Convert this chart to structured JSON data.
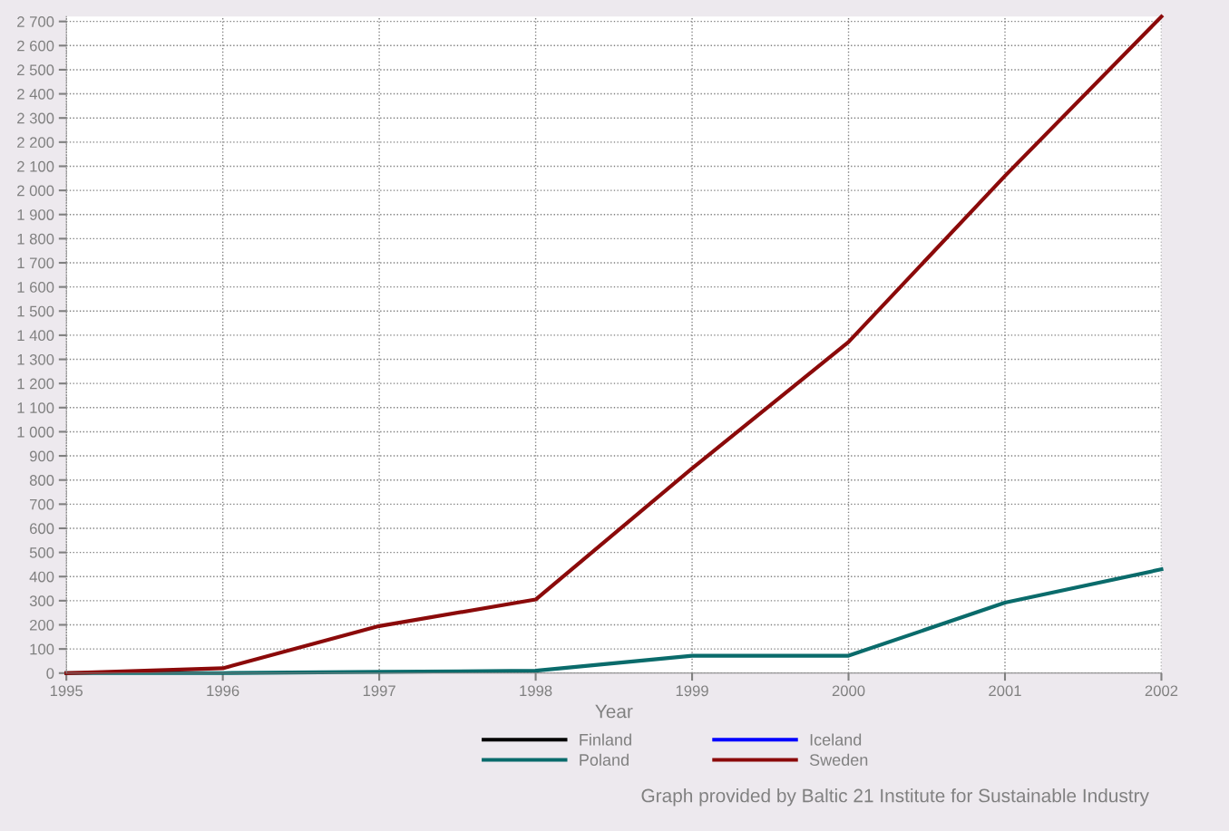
{
  "chart_data": {
    "type": "line",
    "xlabel": "Year",
    "x": [
      1995,
      1996,
      1997,
      1998,
      1999,
      2000,
      2001,
      2002
    ],
    "series": [
      {
        "name": "Finland",
        "color": "#000000",
        "values": [
          null,
          null,
          null,
          null,
          null,
          null,
          null,
          null
        ]
      },
      {
        "name": "Poland",
        "color": "#0a6b6b",
        "values": [
          0,
          0,
          5,
          10,
          72,
          72,
          292,
          430
        ]
      },
      {
        "name": "Iceland",
        "color": "#0000ff",
        "values": [
          null,
          null,
          null,
          null,
          null,
          null,
          null,
          null
        ]
      },
      {
        "name": "Sweden",
        "color": "#8b0a0a",
        "values": [
          0,
          20,
          195,
          305,
          848,
          1372,
          2060,
          2720
        ]
      }
    ],
    "xlim": [
      1995,
      2002
    ],
    "xticks": [
      1995,
      1996,
      1997,
      1998,
      1999,
      2000,
      2001,
      2002
    ],
    "ylim": [
      0,
      2720
    ],
    "yticks": [
      0,
      100,
      200,
      300,
      400,
      500,
      600,
      700,
      800,
      900,
      {
        "value": 1000,
        "label": "1 000"
      },
      {
        "value": 1100,
        "label": "1 100"
      },
      {
        "value": 1200,
        "label": "1 200"
      },
      {
        "value": 1300,
        "label": "1 300"
      },
      {
        "value": 1400,
        "label": "1 400"
      },
      {
        "value": 1500,
        "label": "1 500"
      },
      {
        "value": 1600,
        "label": "1 600"
      },
      {
        "value": 1700,
        "label": "1 700"
      },
      {
        "value": 1800,
        "label": "1 800"
      },
      {
        "value": 1900,
        "label": "1 900"
      },
      {
        "value": 2000,
        "label": "2 000"
      },
      {
        "value": 2100,
        "label": "2 100"
      },
      {
        "value": 2200,
        "label": "2 200"
      },
      {
        "value": 2300,
        "label": "2 300"
      },
      {
        "value": 2400,
        "label": "2 400"
      },
      {
        "value": 2500,
        "label": "2 500"
      },
      {
        "value": 2600,
        "label": "2 600"
      },
      {
        "value": 2700,
        "label": "2 700"
      }
    ],
    "grid": true,
    "legend": "bottom",
    "marker": "none",
    "line_style": "solid",
    "annotations": [
      "Graph provided by Baltic 21 Institute for Sustainable Industry"
    ]
  }
}
